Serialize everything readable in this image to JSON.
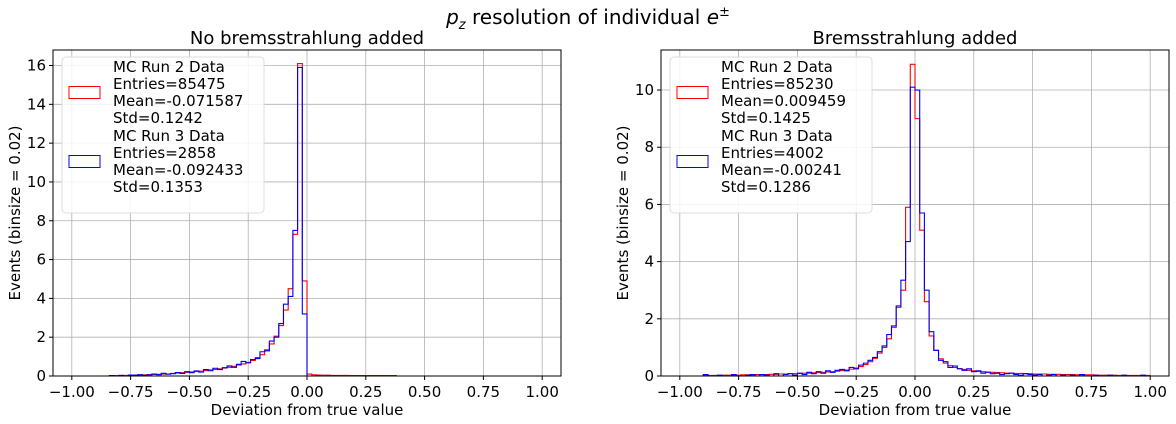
{
  "figure": {
    "suptitle_prefix": "p",
    "suptitle_sub": "z",
    "suptitle_middle": " resolution of individual ",
    "suptitle_e": "e",
    "suptitle_sup": "±"
  },
  "chart_data": [
    {
      "type": "histogram",
      "title": "No bremsstrahlung added",
      "xlabel": "Deviation from true value",
      "ylabel": "Events (binsize = 0.02)",
      "xlim": [
        -1.08,
        1.08
      ],
      "ylim": [
        0,
        16.8
      ],
      "xticks": [
        -1.0,
        -0.75,
        -0.5,
        -0.25,
        0.0,
        0.25,
        0.5,
        0.75,
        1.0
      ],
      "xtick_labels": [
        "−1.00",
        "−0.75",
        "−0.50",
        "−0.25",
        "0.00",
        "0.25",
        "0.50",
        "0.75",
        "1.00"
      ],
      "yticks": [
        0,
        2,
        4,
        6,
        8,
        10,
        12,
        14,
        16
      ],
      "ytick_labels": [
        "0",
        "2",
        "4",
        "6",
        "8",
        "10",
        "12",
        "14",
        "16"
      ],
      "grid": true,
      "legend_position": "upper-left",
      "series": [
        {
          "name": "MC Run 2 Data",
          "stats": [
            "Entries=85475",
            "Mean=-0.071587",
            "Std=0.1242"
          ],
          "color": "#ff0000",
          "x": [
            -0.84,
            -0.82,
            -0.8,
            -0.78,
            -0.76,
            -0.74,
            -0.72,
            -0.7,
            -0.68,
            -0.66,
            -0.64,
            -0.62,
            -0.6,
            -0.58,
            -0.56,
            -0.54,
            -0.52,
            -0.5,
            -0.48,
            -0.46,
            -0.44,
            -0.42,
            -0.4,
            -0.38,
            -0.36,
            -0.34,
            -0.32,
            -0.3,
            -0.28,
            -0.26,
            -0.24,
            -0.22,
            -0.2,
            -0.18,
            -0.16,
            -0.14,
            -0.12,
            -0.1,
            -0.08,
            -0.06,
            -0.04,
            -0.02,
            0.0,
            0.02,
            0.04,
            0.06,
            0.08,
            0.1,
            0.12,
            0.14,
            0.16,
            0.18,
            0.2,
            0.22,
            0.24,
            0.26,
            0.28,
            0.3,
            0.32,
            0.34,
            0.36,
            0.38
          ],
          "y": [
            0.02,
            0.02,
            0.03,
            0.03,
            0.04,
            0.04,
            0.05,
            0.06,
            0.07,
            0.08,
            0.09,
            0.1,
            0.11,
            0.13,
            0.15,
            0.17,
            0.19,
            0.21,
            0.23,
            0.25,
            0.28,
            0.31,
            0.34,
            0.37,
            0.41,
            0.45,
            0.5,
            0.56,
            0.62,
            0.7,
            0.8,
            0.95,
            1.1,
            1.35,
            1.65,
            2.05,
            2.6,
            3.4,
            4.5,
            7.3,
            16.1,
            4.9,
            0.1,
            0.06,
            0.05,
            0.04,
            0.04,
            0.03,
            0.03,
            0.03,
            0.03,
            0.02,
            0.02,
            0.02,
            0.02,
            0.02,
            0.02,
            0.02,
            0.02,
            0.02,
            0.02,
            0.0
          ]
        },
        {
          "name": "MC Run 3 Data",
          "stats": [
            "Entries=2858",
            "Mean=-0.092433",
            "Std=0.1353"
          ],
          "color": "#0000ff",
          "x": [
            -0.84,
            -0.82,
            -0.8,
            -0.78,
            -0.76,
            -0.74,
            -0.72,
            -0.7,
            -0.68,
            -0.66,
            -0.64,
            -0.62,
            -0.6,
            -0.58,
            -0.56,
            -0.54,
            -0.52,
            -0.5,
            -0.48,
            -0.46,
            -0.44,
            -0.42,
            -0.4,
            -0.38,
            -0.36,
            -0.34,
            -0.32,
            -0.3,
            -0.28,
            -0.26,
            -0.24,
            -0.22,
            -0.2,
            -0.18,
            -0.16,
            -0.14,
            -0.12,
            -0.1,
            -0.08,
            -0.06,
            -0.04,
            -0.02,
            0.0
          ],
          "y": [
            0.02,
            0.0,
            0.03,
            0.0,
            0.05,
            0.04,
            0.07,
            0.03,
            0.06,
            0.1,
            0.07,
            0.14,
            0.09,
            0.12,
            0.18,
            0.13,
            0.22,
            0.17,
            0.26,
            0.2,
            0.33,
            0.27,
            0.4,
            0.33,
            0.43,
            0.52,
            0.45,
            0.6,
            0.75,
            0.68,
            0.85,
            0.9,
            1.25,
            1.3,
            1.8,
            2.0,
            2.7,
            3.7,
            4.1,
            7.5,
            15.9,
            3.2,
            0.0
          ]
        }
      ]
    },
    {
      "type": "histogram",
      "title": "Bremsstrahlung added",
      "xlabel": "Deviation from true value",
      "ylabel": "Events (binsize = 0.02)",
      "xlim": [
        -1.08,
        1.08
      ],
      "ylim": [
        0,
        11.4
      ],
      "xticks": [
        -1.0,
        -0.75,
        -0.5,
        -0.25,
        0.0,
        0.25,
        0.5,
        0.75,
        1.0
      ],
      "xtick_labels": [
        "−1.00",
        "−0.75",
        "−0.50",
        "−0.25",
        "0.00",
        "0.25",
        "0.50",
        "0.75",
        "1.00"
      ],
      "yticks": [
        0,
        2,
        4,
        6,
        8,
        10
      ],
      "ytick_labels": [
        "0",
        "2",
        "4",
        "6",
        "8",
        "10"
      ],
      "grid": true,
      "legend_position": "upper-left",
      "series": [
        {
          "name": "MC Run 2 Data",
          "stats": [
            "Entries=85230",
            "Mean=0.009459",
            "Std=0.1425"
          ],
          "color": "#ff0000",
          "x": [
            -0.9,
            -0.88,
            -0.86,
            -0.84,
            -0.82,
            -0.8,
            -0.78,
            -0.76,
            -0.74,
            -0.72,
            -0.7,
            -0.68,
            -0.66,
            -0.64,
            -0.62,
            -0.6,
            -0.58,
            -0.56,
            -0.54,
            -0.52,
            -0.5,
            -0.48,
            -0.46,
            -0.44,
            -0.42,
            -0.4,
            -0.38,
            -0.36,
            -0.34,
            -0.32,
            -0.3,
            -0.28,
            -0.26,
            -0.24,
            -0.22,
            -0.2,
            -0.18,
            -0.16,
            -0.14,
            -0.12,
            -0.1,
            -0.08,
            -0.06,
            -0.04,
            -0.02,
            0.0,
            0.02,
            0.04,
            0.06,
            0.08,
            0.1,
            0.12,
            0.14,
            0.16,
            0.18,
            0.2,
            0.22,
            0.24,
            0.26,
            0.28,
            0.3,
            0.32,
            0.34,
            0.36,
            0.38,
            0.4,
            0.42,
            0.44,
            0.46,
            0.48,
            0.5,
            0.52,
            0.54,
            0.56,
            0.58,
            0.6,
            0.62,
            0.64,
            0.66,
            0.68,
            0.7,
            0.72,
            0.74,
            0.76,
            0.78,
            0.8,
            0.82,
            0.84,
            0.86,
            0.88,
            0.9,
            0.92,
            0.94,
            0.96,
            0.98
          ],
          "y": [
            0.02,
            0.02,
            0.02,
            0.02,
            0.03,
            0.03,
            0.03,
            0.03,
            0.04,
            0.04,
            0.04,
            0.05,
            0.05,
            0.05,
            0.06,
            0.06,
            0.07,
            0.07,
            0.08,
            0.08,
            0.09,
            0.1,
            0.1,
            0.11,
            0.12,
            0.13,
            0.14,
            0.15,
            0.17,
            0.19,
            0.21,
            0.24,
            0.28,
            0.33,
            0.4,
            0.5,
            0.62,
            0.8,
            1.0,
            1.3,
            1.7,
            2.4,
            3.0,
            5.9,
            10.9,
            9.0,
            5.1,
            2.6,
            1.4,
            0.9,
            0.6,
            0.45,
            0.36,
            0.3,
            0.26,
            0.23,
            0.2,
            0.18,
            0.16,
            0.15,
            0.14,
            0.13,
            0.12,
            0.11,
            0.1,
            0.1,
            0.09,
            0.09,
            0.08,
            0.08,
            0.07,
            0.07,
            0.07,
            0.06,
            0.06,
            0.06,
            0.05,
            0.05,
            0.05,
            0.04,
            0.04,
            0.04,
            0.04,
            0.03,
            0.03,
            0.03,
            0.03,
            0.03,
            0.02,
            0.02,
            0.02,
            0.02,
            0.02,
            0.02,
            0.02
          ]
        },
        {
          "name": "MC Run 3 Data",
          "stats": [
            "Entries=4002",
            "Mean=-0.00241",
            "Std=0.1286"
          ],
          "color": "#0000ff",
          "x": [
            -0.9,
            -0.88,
            -0.86,
            -0.84,
            -0.82,
            -0.8,
            -0.78,
            -0.76,
            -0.74,
            -0.72,
            -0.7,
            -0.68,
            -0.66,
            -0.64,
            -0.62,
            -0.6,
            -0.58,
            -0.56,
            -0.54,
            -0.52,
            -0.5,
            -0.48,
            -0.46,
            -0.44,
            -0.42,
            -0.4,
            -0.38,
            -0.36,
            -0.34,
            -0.32,
            -0.3,
            -0.28,
            -0.26,
            -0.24,
            -0.22,
            -0.2,
            -0.18,
            -0.16,
            -0.14,
            -0.12,
            -0.1,
            -0.08,
            -0.06,
            -0.04,
            -0.02,
            0.0,
            0.02,
            0.04,
            0.06,
            0.08,
            0.1,
            0.12,
            0.14,
            0.16,
            0.18,
            0.2,
            0.22,
            0.24,
            0.26,
            0.28,
            0.3,
            0.32,
            0.34,
            0.36,
            0.38,
            0.4,
            0.42,
            0.44,
            0.46,
            0.48,
            0.5,
            0.52,
            0.54,
            0.56,
            0.58,
            0.6,
            0.62,
            0.64,
            0.66,
            0.68,
            0.7,
            0.72,
            0.74,
            0.76,
            0.78,
            0.8,
            0.82,
            0.84,
            0.86,
            0.88,
            0.9,
            0.92,
            0.94,
            0.96,
            0.98
          ],
          "y": [
            0.05,
            0.0,
            0.0,
            0.03,
            0.0,
            0.0,
            0.05,
            0.0,
            0.0,
            0.03,
            0.05,
            0.0,
            0.05,
            0.03,
            0.0,
            0.08,
            0.0,
            0.05,
            0.08,
            0.03,
            0.1,
            0.05,
            0.13,
            0.08,
            0.15,
            0.1,
            0.18,
            0.13,
            0.2,
            0.23,
            0.18,
            0.3,
            0.25,
            0.38,
            0.45,
            0.55,
            0.65,
            0.85,
            1.05,
            1.45,
            1.75,
            2.45,
            3.35,
            4.7,
            10.1,
            10.0,
            5.7,
            3.0,
            1.55,
            0.9,
            0.55,
            0.5,
            0.3,
            0.35,
            0.25,
            0.2,
            0.25,
            0.15,
            0.18,
            0.1,
            0.13,
            0.08,
            0.1,
            0.05,
            0.08,
            0.1,
            0.05,
            0.03,
            0.08,
            0.05,
            0.03,
            0.05,
            0.0,
            0.03,
            0.05,
            0.0,
            0.03,
            0.0,
            0.03,
            0.0,
            0.05,
            0.0,
            0.0,
            0.03,
            0.0,
            0.0,
            0.03,
            0.0,
            0.0,
            0.03,
            0.0,
            0.0,
            0.0,
            0.03,
            0.0
          ]
        }
      ]
    }
  ]
}
